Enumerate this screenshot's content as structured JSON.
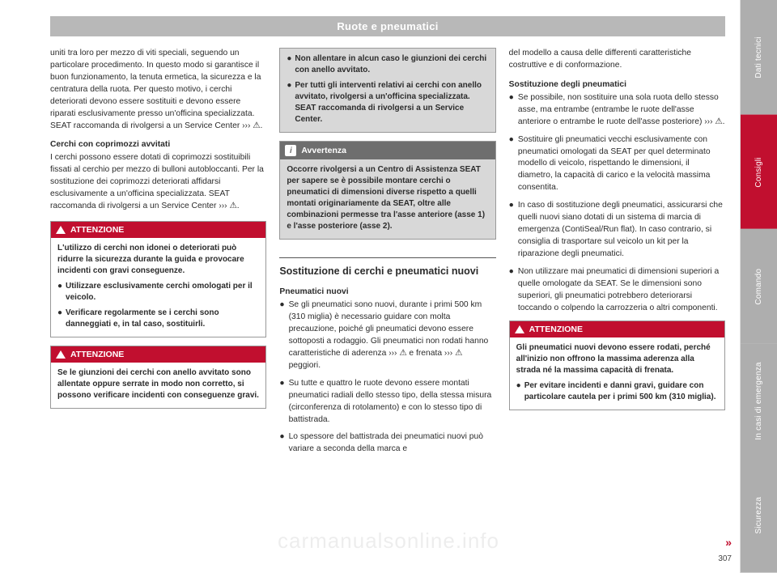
{
  "header": "Ruote e pneumatici",
  "col1": {
    "para1": "uniti tra loro per mezzo di viti speciali, seguendo un particolare procedimento. In questo modo si garantisce il buon funzionamento, la tenuta ermetica, la sicurezza e la centratura della ruota. Per questo motivo, i cerchi deteriorati devono essere sostituiti e devono essere riparati esclusivamente presso un'officina specializzata. SEAT raccomanda di rivolgersi a un Service Center ››› ⚠.",
    "sub1": "Cerchi con coprimozzi avvitati",
    "para2": "I cerchi possono essere dotati di coprimozzi sostituibili fissati al cerchio per mezzo di bulloni autobloccanti. Per la sostituzione dei coprimozzi deteriorati affidarsi esclusivamente a un'officina specializzata. SEAT raccomanda di rivolgersi a un Service Center ››› ⚠.",
    "warn1": {
      "title": "ATTENZIONE",
      "p1": "L'utilizzo di cerchi non idonei o deteriorati può ridurre la sicurezza durante la guida e provocare incidenti con gravi conseguenze.",
      "b1": "Utilizzare esclusivamente cerchi omologati per il veicolo.",
      "b2": "Verificare regolarmente se i cerchi sono danneggiati e, in tal caso, sostituirli."
    },
    "warn2": {
      "title": "ATTENZIONE",
      "p1": "Se le giunzioni dei cerchi con anello avvitato sono allentate oppure serrate in modo non corretto, si possono verificare incidenti con conseguenze gravi."
    }
  },
  "col2": {
    "warn_cont": {
      "b1": "Non allentare in alcun caso le giunzioni dei cerchi con anello avvitato.",
      "b2": "Per tutti gli interventi relativi ai cerchi con anello avvitato, rivolgersi a un'officina specializzata. SEAT raccomanda di rivolgersi a un Service Center."
    },
    "note": {
      "title": "Avvertenza",
      "p1": "Occorre rivolgersi a un Centro di Assistenza SEAT per sapere se è possibile montare cerchi o pneumatici di dimensioni diverse rispetto a quelli montati originariamente da SEAT, oltre alle combinazioni permesse tra l'asse anteriore (asse 1) e l'asse posteriore (asse 2)."
    },
    "section_title": "Sostituzione di cerchi e pneumatici nuovi",
    "sub1": "Pneumatici nuovi",
    "b1": "Se gli pneumatici sono nuovi, durante i primi 500 km (310 miglia) è necessario guidare con molta precauzione, poiché gli pneumatici devono essere sottoposti a rodaggio. Gli pneumatici non rodati hanno caratteristiche di aderenza ››› ⚠ e frenata ››› ⚠ peggiori.",
    "b2": "Su tutte e quattro le ruote devono essere montati pneumatici radiali dello stesso tipo, della stessa misura (circonferenza di rotolamento) e con lo stesso tipo di battistrada.",
    "b3": "Lo spessore del battistrada dei pneumatici nuovi può variare a seconda della marca e"
  },
  "col3": {
    "para1": "del modello a causa delle differenti caratteristiche costruttive e di conformazione.",
    "sub1": "Sostituzione degli pneumatici",
    "b1": "Se possibile, non sostituire una sola ruota dello stesso asse, ma entrambe (entrambe le ruote dell'asse anteriore o entrambe le ruote dell'asse posteriore) ››› ⚠.",
    "b2": "Sostituire gli pneumatici vecchi esclusivamente con pneumatici omologati da SEAT per quel determinato modello di veicolo, rispettando le dimensioni, il diametro, la capacità di carico e la velocità massima consentita.",
    "b3": "In caso di sostituzione degli pneumatici, assicurarsi che quelli nuovi siano dotati di un sistema di marcia di emergenza (ContiSeal/Run flat). In caso contrario, si consiglia di trasportare sul veicolo un kit per la riparazione degli pneumatici.",
    "b4": "Non utilizzare mai pneumatici di dimensioni superiori a quelle omologate da SEAT. Se le dimensioni sono superiori, gli pneumatici potrebbero deteriorarsi toccando o colpendo la carrozzeria o altri componenti.",
    "warn": {
      "title": "ATTENZIONE",
      "p1": "Gli pneumatici nuovi devono essere rodati, perché all'inizio non offrono la massima aderenza alla strada né la massima capacità di frenata.",
      "b1": "Per evitare incidenti e danni gravi, guidare con particolare cautela per i primi 500 km (310 miglia)."
    }
  },
  "tabs": {
    "t1": "Dati tecnici",
    "t2": "Consigli",
    "t3": "Comando",
    "t4": "In casi di emergenza",
    "t5": "Sicurezza"
  },
  "page_number": "307",
  "continue": "»",
  "watermark": "carmanualsonline.info"
}
